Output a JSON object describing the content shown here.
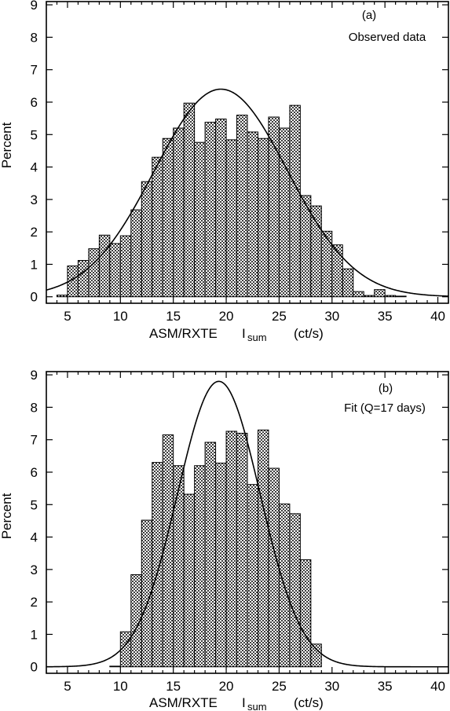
{
  "chart_data": [
    {
      "type": "bar",
      "panel_label": "(a)",
      "annotation": "Observed data",
      "xlabel_main": "ASM/RXTE",
      "xlabel_symbol": "I",
      "xlabel_sub": "sum",
      "xlabel_units": "(ct/s)",
      "ylabel": "Percent",
      "xlim": [
        3,
        41
      ],
      "ylim": [
        -0.2,
        9.1
      ],
      "xticks": [
        5,
        10,
        15,
        20,
        25,
        30,
        35,
        40
      ],
      "yticks": [
        0,
        1,
        2,
        3,
        4,
        5,
        6,
        7,
        8,
        9
      ],
      "bin_width": 1,
      "bins": [
        {
          "x": 4,
          "value": 0.05
        },
        {
          "x": 5,
          "value": 0.95
        },
        {
          "x": 6,
          "value": 1.12
        },
        {
          "x": 7,
          "value": 1.48
        },
        {
          "x": 8,
          "value": 1.9
        },
        {
          "x": 9,
          "value": 1.64
        },
        {
          "x": 10,
          "value": 1.88
        },
        {
          "x": 11,
          "value": 2.68
        },
        {
          "x": 12,
          "value": 3.55
        },
        {
          "x": 13,
          "value": 4.3
        },
        {
          "x": 14,
          "value": 4.88
        },
        {
          "x": 15,
          "value": 5.2
        },
        {
          "x": 16,
          "value": 5.97
        },
        {
          "x": 17,
          "value": 4.76
        },
        {
          "x": 18,
          "value": 5.38
        },
        {
          "x": 19,
          "value": 5.48
        },
        {
          "x": 20,
          "value": 4.84
        },
        {
          "x": 21,
          "value": 5.6
        },
        {
          "x": 22,
          "value": 5.08
        },
        {
          "x": 23,
          "value": 4.88
        },
        {
          "x": 24,
          "value": 5.54
        },
        {
          "x": 25,
          "value": 5.2
        },
        {
          "x": 26,
          "value": 5.9
        },
        {
          "x": 27,
          "value": 3.12
        },
        {
          "x": 28,
          "value": 2.8
        },
        {
          "x": 29,
          "value": 2.02
        },
        {
          "x": 30,
          "value": 1.6
        },
        {
          "x": 31,
          "value": 0.86
        },
        {
          "x": 32,
          "value": 0.16
        },
        {
          "x": 33,
          "value": 0.04
        },
        {
          "x": 34,
          "value": 0.22
        },
        {
          "x": 35,
          "value": 0.04
        },
        {
          "x": 36,
          "value": 0.02
        }
      ],
      "curve": {
        "type": "gaussian",
        "peak": 6.4,
        "mean": 19.5,
        "sigma": 6.3
      }
    },
    {
      "type": "bar",
      "panel_label": "(b)",
      "annotation": "Fit (Q=17 days)",
      "xlabel_main": "ASM/RXTE",
      "xlabel_symbol": "I",
      "xlabel_sub": "sum",
      "xlabel_units": "(ct/s)",
      "ylabel": "Percent",
      "xlim": [
        3,
        41
      ],
      "ylim": [
        -0.2,
        9.1
      ],
      "xticks": [
        5,
        10,
        15,
        20,
        25,
        30,
        35,
        40
      ],
      "yticks": [
        0,
        1,
        2,
        3,
        4,
        5,
        6,
        7,
        8,
        9
      ],
      "bin_width": 1,
      "bins": [
        {
          "x": 9,
          "value": 0.02
        },
        {
          "x": 10,
          "value": 1.08
        },
        {
          "x": 11,
          "value": 2.84
        },
        {
          "x": 12,
          "value": 4.52
        },
        {
          "x": 13,
          "value": 6.3
        },
        {
          "x": 14,
          "value": 7.15
        },
        {
          "x": 15,
          "value": 6.2
        },
        {
          "x": 16,
          "value": 5.32
        },
        {
          "x": 17,
          "value": 6.2
        },
        {
          "x": 18,
          "value": 6.92
        },
        {
          "x": 19,
          "value": 6.28
        },
        {
          "x": 20,
          "value": 7.26
        },
        {
          "x": 21,
          "value": 7.2
        },
        {
          "x": 22,
          "value": 5.62
        },
        {
          "x": 23,
          "value": 7.3
        },
        {
          "x": 24,
          "value": 6.12
        },
        {
          "x": 25,
          "value": 5.02
        },
        {
          "x": 26,
          "value": 4.72
        },
        {
          "x": 27,
          "value": 3.3
        },
        {
          "x": 28,
          "value": 0.7
        }
      ],
      "curve": {
        "type": "gaussian",
        "peak": 8.8,
        "mean": 19.3,
        "sigma": 3.9
      }
    }
  ]
}
